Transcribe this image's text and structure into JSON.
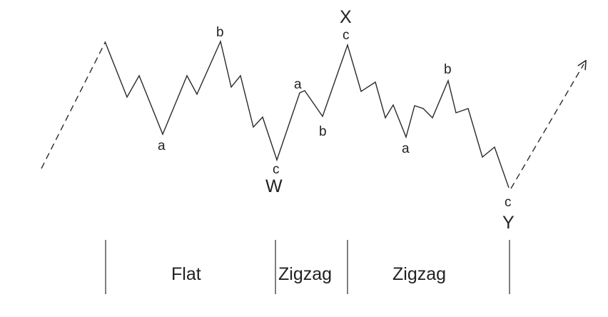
{
  "labels": {
    "flat_a": "a",
    "flat_b": "b",
    "flat_c": "c",
    "w": "W",
    "zig1_a": "a",
    "zig1_b": "b",
    "zig1_c": "c",
    "x": "X",
    "zig2_a": "a",
    "zig2_b": "b",
    "zig2_c": "c",
    "y": "Y"
  },
  "sections": {
    "flat": "Flat",
    "zigzag_1": "Zigzag",
    "zigzag_2": "Zigzag"
  },
  "colors": {
    "line": "#2a2a2a",
    "text": "#222222"
  }
}
